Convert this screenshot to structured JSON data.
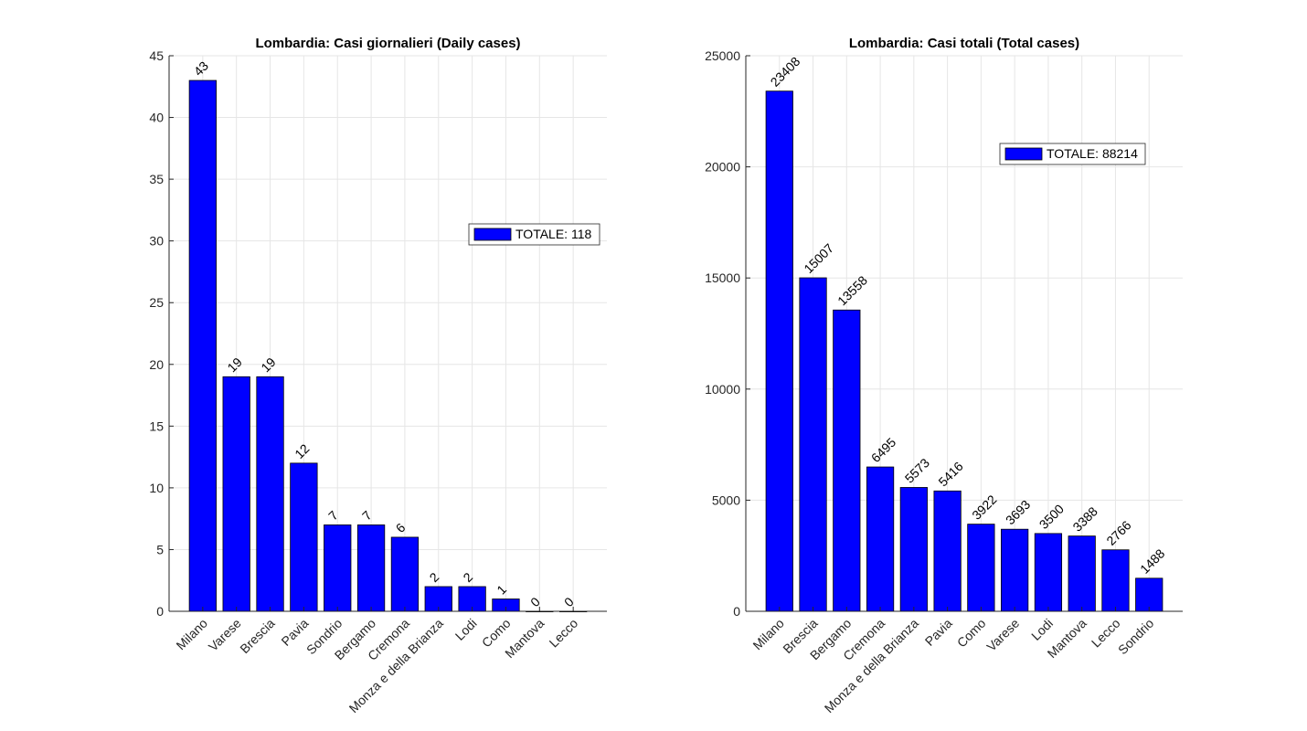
{
  "chart_data": [
    {
      "type": "bar",
      "title": "Lombardia: Casi giornalieri (Daily cases)",
      "categories": [
        "Milano",
        "Varese",
        "Brescia",
        "Pavia",
        "Sondrio",
        "Bergamo",
        "Cremona",
        "Monza e della Brianza",
        "Lodi",
        "Como",
        "Mantova",
        "Lecco"
      ],
      "values": [
        43,
        19,
        19,
        12,
        7,
        7,
        6,
        2,
        2,
        1,
        0,
        0
      ],
      "ylim": [
        0,
        45
      ],
      "yticks": [
        0,
        5,
        10,
        15,
        20,
        25,
        30,
        35,
        40,
        45
      ],
      "legend": "TOTALE: 118",
      "legend_position": "right",
      "grid": true,
      "bar_color": "#0000ff"
    },
    {
      "type": "bar",
      "title": "Lombardia: Casi totali (Total cases)",
      "categories": [
        "Milano",
        "Brescia",
        "Bergamo",
        "Cremona",
        "Monza e della Brianza",
        "Pavia",
        "Como",
        "Varese",
        "Lodi",
        "Mantova",
        "Lecco",
        "Sondrio"
      ],
      "values": [
        23408,
        15007,
        13558,
        6495,
        5573,
        5416,
        3922,
        3693,
        3500,
        3388,
        2766,
        1488
      ],
      "ylim": [
        0,
        25000
      ],
      "yticks": [
        0,
        5000,
        10000,
        15000,
        20000,
        25000
      ],
      "legend": "TOTALE: 88214",
      "legend_position": "top-right",
      "grid": true,
      "bar_color": "#0000ff"
    }
  ]
}
